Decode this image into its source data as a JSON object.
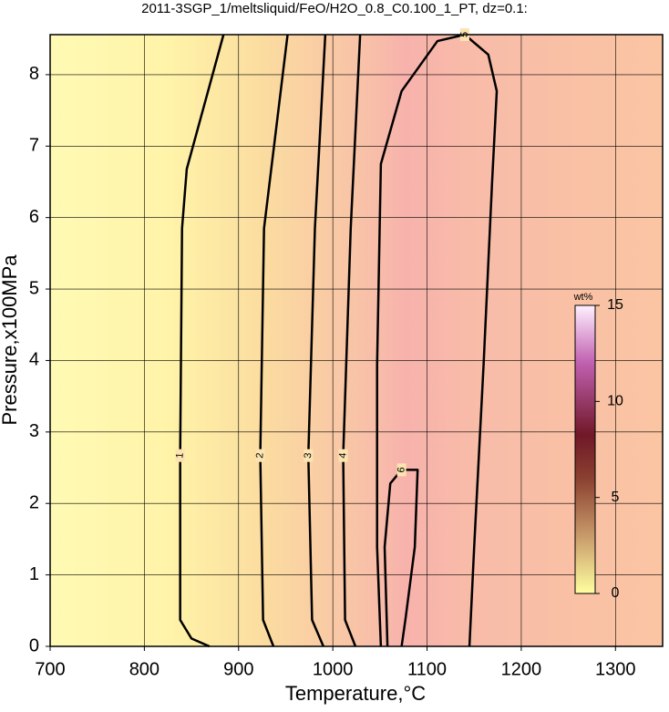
{
  "chart_data": {
    "type": "contour",
    "title": "2011-3SGP_1/meltsliquid/FeO/H2O_0.8_C0.100_1_PT, dz=0.1:",
    "xlabel": "Temperature,°C",
    "ylabel": "Pressure,x100MPa",
    "xlim": [
      700,
      1350
    ],
    "ylim": [
      0,
      8.56
    ],
    "xticks": [
      700,
      800,
      900,
      1000,
      1100,
      1200,
      1300
    ],
    "yticks": [
      0,
      1,
      2,
      3,
      4,
      5,
      6,
      7,
      8
    ],
    "grid": true,
    "contours": [
      {
        "level": 1,
        "x": [
          884,
          845,
          840,
          838,
          838,
          850,
          869
        ],
        "y": [
          8.56,
          6.68,
          5.85,
          2.67,
          0.37,
          0.11,
          0
        ]
      },
      {
        "level": 2,
        "x": [
          952,
          927,
          923,
          926,
          937
        ],
        "y": [
          8.56,
          5.85,
          2.67,
          0.37,
          0
        ]
      },
      {
        "level": 3,
        "x": [
          992,
          981,
          974,
          978,
          990
        ],
        "y": [
          8.56,
          5.85,
          2.67,
          0.37,
          0
        ]
      },
      {
        "level": 4,
        "x": [
          1029,
          1019,
          1011,
          1013,
          1024
        ],
        "y": [
          8.56,
          5.85,
          2.67,
          0.37,
          0
        ]
      },
      {
        "level": 5,
        "x": [
          1051,
          1047,
          1047,
          1051,
          1073,
          1111,
          1140,
          1165,
          1174,
          1169,
          1160,
          1150,
          1145
        ],
        "y": [
          0,
          1.39,
          3.94,
          6.75,
          7.77,
          8.47,
          8.56,
          8.28,
          7.77,
          6.49,
          3.94,
          1.39,
          0
        ]
      },
      {
        "level": 6,
        "x": [
          1058,
          1055,
          1061,
          1073,
          1090,
          1087,
          1077,
          1073
        ],
        "y": [
          0,
          1.39,
          2.28,
          2.47,
          2.47,
          1.39,
          0.37,
          0
        ]
      }
    ],
    "colorbar": {
      "label": "wt%",
      "clim": [
        0,
        15
      ],
      "ticks": [
        0,
        5,
        10,
        15
      ]
    }
  }
}
